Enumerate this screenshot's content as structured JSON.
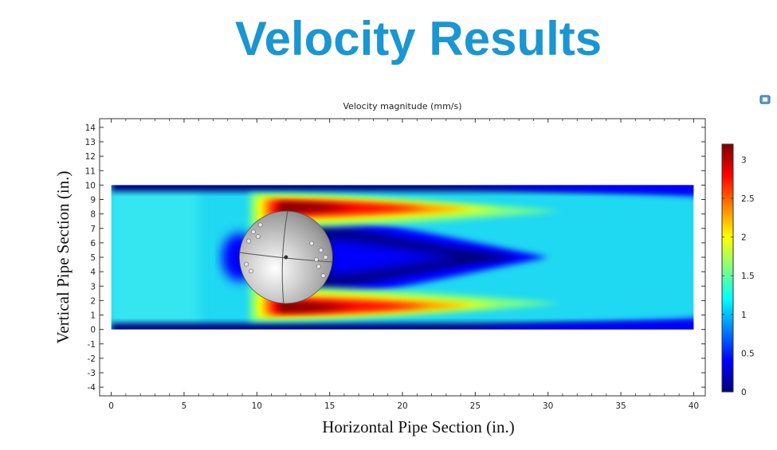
{
  "slide": {
    "title": "Velocity Results"
  },
  "icons": {
    "corner": "expand-window-icon"
  },
  "chart_data": {
    "type": "heatmap",
    "title": "Velocity magnitude (mm/s)",
    "xlabel": "Horizontal Pipe Section (in.)",
    "ylabel": "Vertical Pipe Section (in.)",
    "xlim": [
      -0.8,
      40.8
    ],
    "ylim": [
      -4.6,
      14.6
    ],
    "x_ticks": [
      0,
      5,
      10,
      15,
      20,
      25,
      30,
      35,
      40
    ],
    "y_ticks": [
      -4,
      -3,
      -2,
      -1,
      0,
      1,
      2,
      3,
      4,
      5,
      6,
      7,
      8,
      9,
      10,
      11,
      12,
      13,
      14
    ],
    "pipe": {
      "x_range": [
        0,
        40
      ],
      "y_range": [
        0,
        10
      ]
    },
    "sphere": {
      "center": [
        12,
        5
      ],
      "radius": 3.2
    },
    "colorbar": {
      "range": [
        0,
        3.2
      ],
      "ticks": [
        "0",
        "0.5",
        "1",
        "1.5",
        "2",
        "2.5",
        "3"
      ],
      "colormap": [
        "#00007f",
        "#0000ff",
        "#0080ff",
        "#00ffff",
        "#80ff80",
        "#ffff00",
        "#ff8000",
        "#ff0000",
        "#7f0000"
      ]
    },
    "grid": false
  }
}
